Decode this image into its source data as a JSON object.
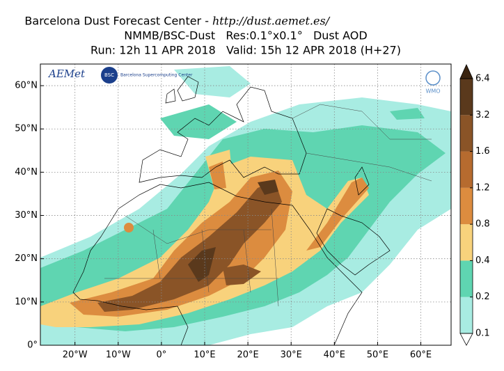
{
  "header": {
    "title": "Barcelona Dust Forecast Center -",
    "url": "http://dust.aemet.es/",
    "subtitle": "NMMB/BSC-Dust   Res:0.1°x0.1°   Dust AOD",
    "run": "Run: 12h 11 APR 2018   Valid: 15h 12 APR 2018 (H+27)"
  },
  "logos": {
    "aemet": "AEMet",
    "bsc": "BSC",
    "bsc_name": "Barcelona Supercomputing Center",
    "wmo": "WMO"
  },
  "map": {
    "lonlim": [
      -28,
      67
    ],
    "latlim": [
      0,
      65
    ],
    "lon_ticks": [
      {
        "value": -20,
        "label": "20°W"
      },
      {
        "value": -10,
        "label": "10°W"
      },
      {
        "value": 0,
        "label": "0°"
      },
      {
        "value": 10,
        "label": "10°E"
      },
      {
        "value": 20,
        "label": "20°E"
      },
      {
        "value": 30,
        "label": "30°E"
      },
      {
        "value": 40,
        "label": "40°E"
      },
      {
        "value": 50,
        "label": "50°E"
      },
      {
        "value": 60,
        "label": "60°E"
      }
    ],
    "lat_ticks": [
      {
        "value": 0,
        "label": "0°"
      },
      {
        "value": 10,
        "label": "10°N"
      },
      {
        "value": 20,
        "label": "20°N"
      },
      {
        "value": 30,
        "label": "30°N"
      },
      {
        "value": 40,
        "label": "40°N"
      },
      {
        "value": 50,
        "label": "50°N"
      },
      {
        "value": 60,
        "label": "60°N"
      }
    ]
  },
  "colorbar": {
    "levels": [
      0.1,
      0.2,
      0.4,
      0.8,
      1.2,
      1.6,
      3.2,
      6.4
    ],
    "colors": [
      "#a8ece2",
      "#5fd5b1",
      "#f8d27c",
      "#dc8c3f",
      "#b66b2f",
      "#8a5427",
      "#5a391c"
    ],
    "under": "#ffffff",
    "over": "#3a2410"
  }
}
